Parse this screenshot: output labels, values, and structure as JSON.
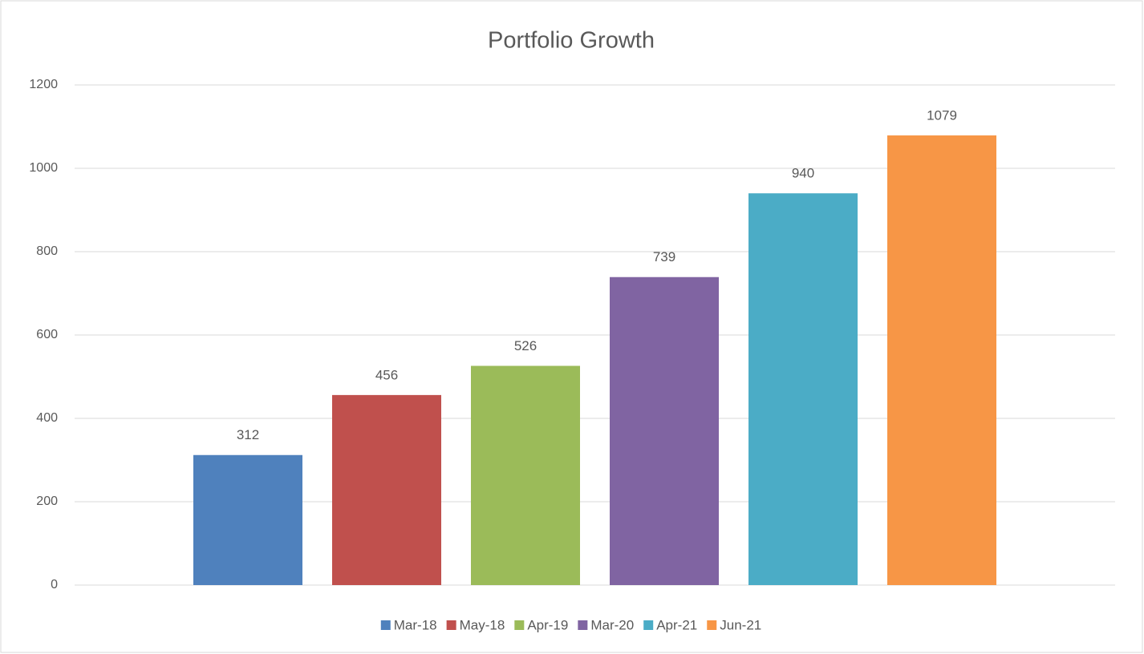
{
  "chart_data": {
    "type": "bar",
    "title": "Portfolio Growth",
    "categories": [
      null
    ],
    "series": [
      {
        "name": "Mar-18",
        "color": "#4f81bd",
        "values": [
          312
        ]
      },
      {
        "name": "May-18",
        "color": "#c0504d",
        "values": [
          456
        ]
      },
      {
        "name": "Apr-19",
        "color": "#9bbb59",
        "values": [
          526
        ]
      },
      {
        "name": "Mar-20",
        "color": "#8064a2",
        "values": [
          739
        ]
      },
      {
        "name": "Apr-21",
        "color": "#4bacc6",
        "values": [
          940
        ]
      },
      {
        "name": "Jun-21",
        "color": "#f79646",
        "values": [
          1079
        ]
      }
    ],
    "ylim": [
      0,
      1200
    ],
    "yticks": [
      0,
      200,
      400,
      600,
      800,
      1000,
      1200
    ],
    "grid": true,
    "legend": "bottom",
    "data_labels": true
  }
}
